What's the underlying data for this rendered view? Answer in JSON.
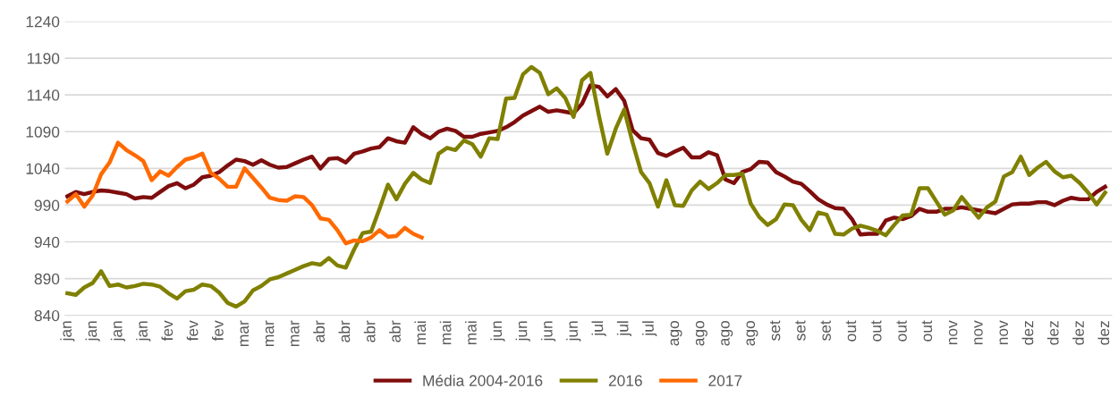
{
  "chart_data": {
    "type": "line",
    "categories": [
      "jan",
      null,
      null,
      "jan",
      null,
      null,
      "jan",
      null,
      null,
      "jan",
      null,
      null,
      "fev",
      null,
      null,
      "fev",
      null,
      null,
      "fev",
      null,
      null,
      "mar",
      null,
      null,
      "mar",
      null,
      null,
      "mar",
      null,
      null,
      "abr",
      null,
      null,
      "abr",
      null,
      null,
      "abr",
      null,
      null,
      "abr",
      null,
      null,
      "mai",
      null,
      null,
      "mai",
      null,
      null,
      "mai",
      null,
      null,
      "jun",
      null,
      null,
      "jun",
      null,
      null,
      "jun",
      null,
      null,
      "jun",
      null,
      null,
      "jul",
      null,
      null,
      "jul",
      null,
      null,
      "jul",
      null,
      null,
      "ago",
      null,
      null,
      "ago",
      null,
      null,
      "ago",
      null,
      null,
      "ago",
      null,
      null,
      "set",
      null,
      null,
      "set",
      null,
      null,
      "set",
      null,
      null,
      "out",
      null,
      null,
      "out",
      null,
      null,
      "out",
      null,
      null,
      "out",
      null,
      null,
      "nov",
      null,
      null,
      "nov",
      null,
      null,
      "nov",
      null,
      null,
      "dez",
      null,
      null,
      "dez",
      null,
      null,
      "dez",
      null,
      null,
      "dez"
    ],
    "ylim": [
      840,
      1240
    ],
    "yticks": [
      840,
      890,
      940,
      990,
      1040,
      1090,
      1140,
      1190,
      1240
    ],
    "grid": "y",
    "legend": "bottom",
    "series": [
      {
        "name": "Média 2004-2016",
        "color": "#7f0d0d",
        "values": [
          1002,
          1008,
          1005,
          1008,
          1010,
          1009,
          1007,
          1005,
          999,
          1001,
          1000,
          1008,
          1016,
          1020,
          1013,
          1018,
          1028,
          1030,
          1035,
          1044,
          1052,
          1050,
          1045,
          1051,
          1045,
          1041,
          1042,
          1047,
          1052,
          1056,
          1040,
          1053,
          1054,
          1048,
          1060,
          1063,
          1067,
          1069,
          1081,
          1077,
          1075,
          1096,
          1087,
          1081,
          1090,
          1094,
          1091,
          1083,
          1083,
          1087,
          1089,
          1091,
          1096,
          1103,
          1112,
          1118,
          1124,
          1117,
          1119,
          1117,
          1115,
          1128,
          1153,
          1151,
          1138,
          1148,
          1132,
          1092,
          1081,
          1079,
          1061,
          1057,
          1063,
          1068,
          1055,
          1055,
          1062,
          1058,
          1025,
          1020,
          1035,
          1039,
          1049,
          1048,
          1035,
          1029,
          1022,
          1019,
          1009,
          998,
          991,
          986,
          985,
          971,
          950,
          951,
          951,
          969,
          973,
          971,
          975,
          985,
          981,
          981,
          985,
          985,
          987,
          985,
          983,
          981,
          979,
          985,
          991,
          992,
          992,
          994,
          994,
          990,
          996,
          1000,
          998,
          998,
          1008,
          1015
        ]
      },
      {
        "name": "2016",
        "color": "#808000",
        "values": [
          870,
          868,
          878,
          884,
          900,
          880,
          882,
          878,
          880,
          883,
          882,
          879,
          870,
          863,
          873,
          875,
          882,
          880,
          871,
          857,
          852,
          859,
          874,
          880,
          889,
          892,
          897,
          902,
          907,
          911,
          909,
          918,
          908,
          905,
          930,
          952,
          954,
          985,
          1018,
          998,
          1019,
          1034,
          1025,
          1020,
          1060,
          1068,
          1065,
          1078,
          1073,
          1056,
          1081,
          1080,
          1135,
          1136,
          1168,
          1178,
          1170,
          1141,
          1149,
          1136,
          1110,
          1160,
          1170,
          1112,
          1060,
          1094,
          1120,
          1075,
          1035,
          1020,
          988,
          1024,
          990,
          989,
          1010,
          1022,
          1012,
          1020,
          1031,
          1031,
          1033,
          992,
          974,
          963,
          971,
          991,
          990,
          970,
          956,
          980,
          977,
          951,
          950,
          958,
          962,
          959,
          955,
          949,
          963,
          976,
          977,
          1013,
          1013,
          995,
          977,
          983,
          1001,
          987,
          973,
          987,
          995,
          1029,
          1035,
          1056,
          1031,
          1041,
          1049,
          1036,
          1028,
          1030,
          1020,
          1007,
          991,
          1007
        ]
      },
      {
        "name": "2017",
        "color": "#ff6a00",
        "values": [
          995,
          1005,
          988,
          1003,
          1032,
          1048,
          1075,
          1065,
          1058,
          1050,
          1024,
          1036,
          1030,
          1042,
          1052,
          1055,
          1060,
          1034,
          1026,
          1015,
          1015,
          1040,
          1027,
          1014,
          1000,
          997,
          996,
          1002,
          1001,
          990,
          972,
          970,
          956,
          938,
          942,
          941,
          946,
          956,
          947,
          948,
          959,
          951,
          946,
          null,
          null,
          null,
          null,
          null,
          null,
          null,
          null,
          null,
          null,
          null,
          null,
          null,
          null,
          null,
          null,
          null,
          null,
          null,
          null,
          null,
          null,
          null,
          null,
          null,
          null,
          null,
          null,
          null,
          null,
          null,
          null,
          null,
          null,
          null,
          null,
          null,
          null,
          null,
          null,
          null,
          null,
          null,
          null,
          null,
          null,
          null,
          null,
          null,
          null,
          null,
          null,
          null,
          null,
          null,
          null,
          null,
          null,
          null,
          null,
          null,
          null,
          null,
          null,
          null,
          null,
          null,
          null,
          null,
          null,
          null,
          null,
          null,
          null,
          null,
          null,
          null,
          null,
          null,
          null,
          null
        ]
      }
    ]
  }
}
